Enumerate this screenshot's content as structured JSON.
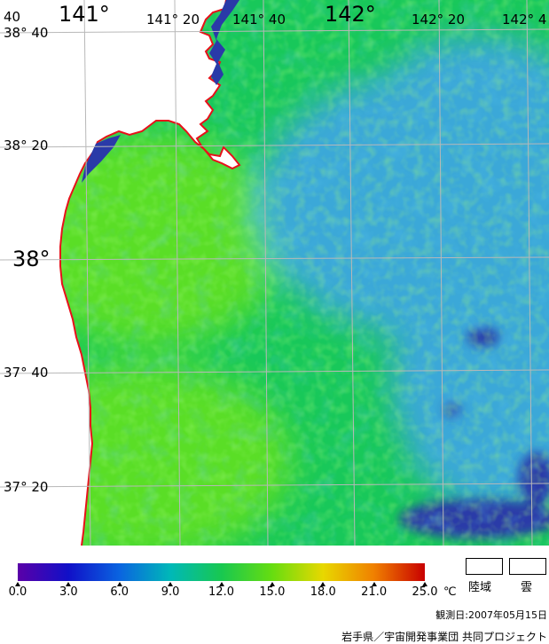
{
  "map": {
    "longitude_labels": [
      {
        "text": "141°",
        "size": "big"
      },
      {
        "text": "141° 20",
        "size": "small"
      },
      {
        "text": "141° 40",
        "size": "small"
      },
      {
        "text": "142°",
        "size": "big"
      },
      {
        "text": "142° 20",
        "size": "small"
      },
      {
        "text": "142° 4",
        "size": "small"
      }
    ],
    "corner_label": "40",
    "latitude_labels": [
      {
        "text": "38° 40",
        "size": "small"
      },
      {
        "text": "38° 20",
        "size": "small"
      },
      {
        "text": "38°",
        "size": "big"
      },
      {
        "text": "37° 40",
        "size": "small"
      },
      {
        "text": "37° 20",
        "size": "small"
      }
    ],
    "colors": {
      "land": "#ffffff",
      "coastline": "#e8101a",
      "grid": "#b8b8b8",
      "sst_cool": "#3aa8d8",
      "sst_mid": "#18c85a",
      "sst_warm": "#5ade28",
      "sst_cold_patch": "#2a3aa8"
    }
  },
  "legend": {
    "ticks": [
      "0.0",
      "3.0",
      "6.0",
      "9.0",
      "12.0",
      "15.0",
      "18.0",
      "21.0",
      "25.0"
    ],
    "unit": "℃",
    "land_label": "陸域",
    "cloud_label": "雲",
    "colorbar_stops": [
      "#5a00a8",
      "#1010c8",
      "#0a64e0",
      "#00b8b8",
      "#18c850",
      "#66dd10",
      "#e8d800",
      "#f08000",
      "#c80000"
    ]
  },
  "observation_date": "観測日:2007年05月15日",
  "credit": "岩手県／宇宙開発事業団 共同プロジェクト"
}
